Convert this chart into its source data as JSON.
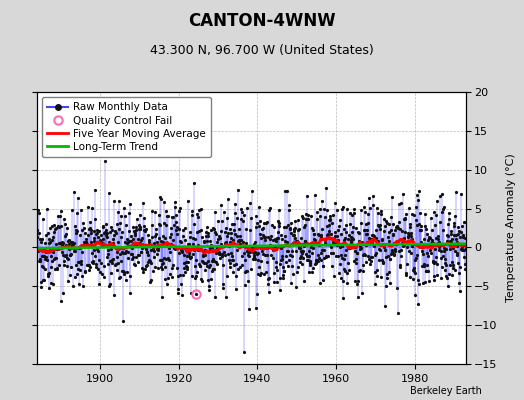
{
  "title": "CANTON-4WNW",
  "subtitle": "43.300 N, 96.700 W (United States)",
  "ylabel": "Temperature Anomaly (°C)",
  "credit": "Berkeley Earth",
  "xlim": [
    1884,
    1993
  ],
  "ylim": [
    -15,
    20
  ],
  "yticks": [
    -15,
    -10,
    -5,
    0,
    5,
    10,
    15,
    20
  ],
  "xticks": [
    1900,
    1920,
    1940,
    1960,
    1980
  ],
  "bg_color": "#d8d8d8",
  "plot_bg_color": "#ffffff",
  "grid_color": "#bbbbbb",
  "seed": 42,
  "start_year": 1884,
  "n_months": 1320,
  "blue_line_color": "#4444ff",
  "dot_color": "#111111",
  "red_line_color": "#ff0000",
  "green_line_color": "#00bb00",
  "qc_color": "#ff69b4",
  "qc_x": 1924.5,
  "qc_y": -6.0,
  "title_fontsize": 12,
  "subtitle_fontsize": 9,
  "axis_fontsize": 8,
  "legend_fontsize": 7.5,
  "credit_fontsize": 7
}
